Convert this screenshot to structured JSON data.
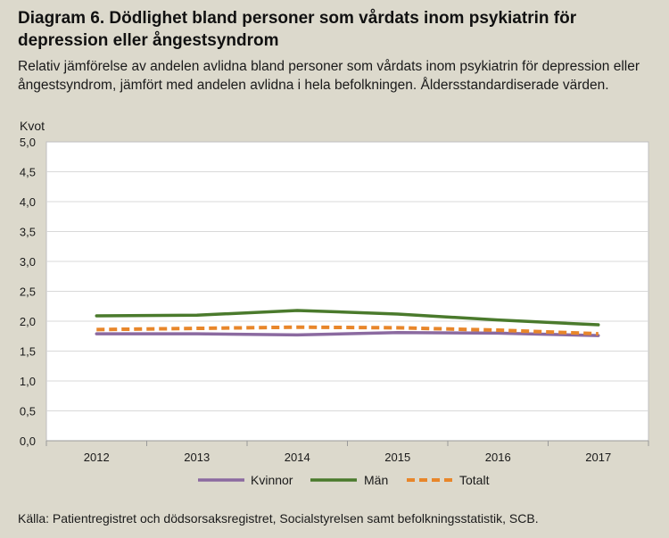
{
  "title": "Diagram 6. Dödlighet bland personer som vårdats inom psykiatrin för depression eller ångestsyndrom",
  "subtitle": "Relativ jämförelse av andelen avlidna bland personer som vårdats inom psykiatrin för depression eller ångestsyndrom, jämfört med andelen avlidna i hela befolkningen. Åldersstandardiserade värden.",
  "source": "Källa: Patientregistret och dödsorsaksregistret, Socialstyrelsen samt befolkningsstatistik, SCB.",
  "colors": {
    "background": "#dcd9cc",
    "plot_background": "#ffffff",
    "kvinnor": "#8b6aa0",
    "man": "#4a7a2c",
    "totalt": "#e8862a"
  },
  "chart_data": {
    "type": "line",
    "ylabel": "Kvot",
    "xlabel": "",
    "ylim": [
      0,
      5
    ],
    "y_ticks": [
      "0,0",
      "0,5",
      "1,0",
      "1,5",
      "2,0",
      "2,5",
      "3,0",
      "3,5",
      "4,0",
      "4,5",
      "5,0"
    ],
    "categories": [
      "2012",
      "2013",
      "2014",
      "2015",
      "2016",
      "2017"
    ],
    "grid": true,
    "legend_position": "bottom",
    "series": [
      {
        "name": "Kvinnor",
        "values": [
          1.79,
          1.79,
          1.77,
          1.81,
          1.8,
          1.76
        ],
        "color": "#8b6aa0",
        "dash": "solid"
      },
      {
        "name": "Män",
        "values": [
          2.09,
          2.1,
          2.18,
          2.12,
          2.02,
          1.94
        ],
        "color": "#4a7a2c",
        "dash": "solid"
      },
      {
        "name": "Totalt",
        "values": [
          1.86,
          1.88,
          1.9,
          1.89,
          1.85,
          1.79
        ],
        "color": "#e8862a",
        "dash": "dashed"
      }
    ]
  }
}
